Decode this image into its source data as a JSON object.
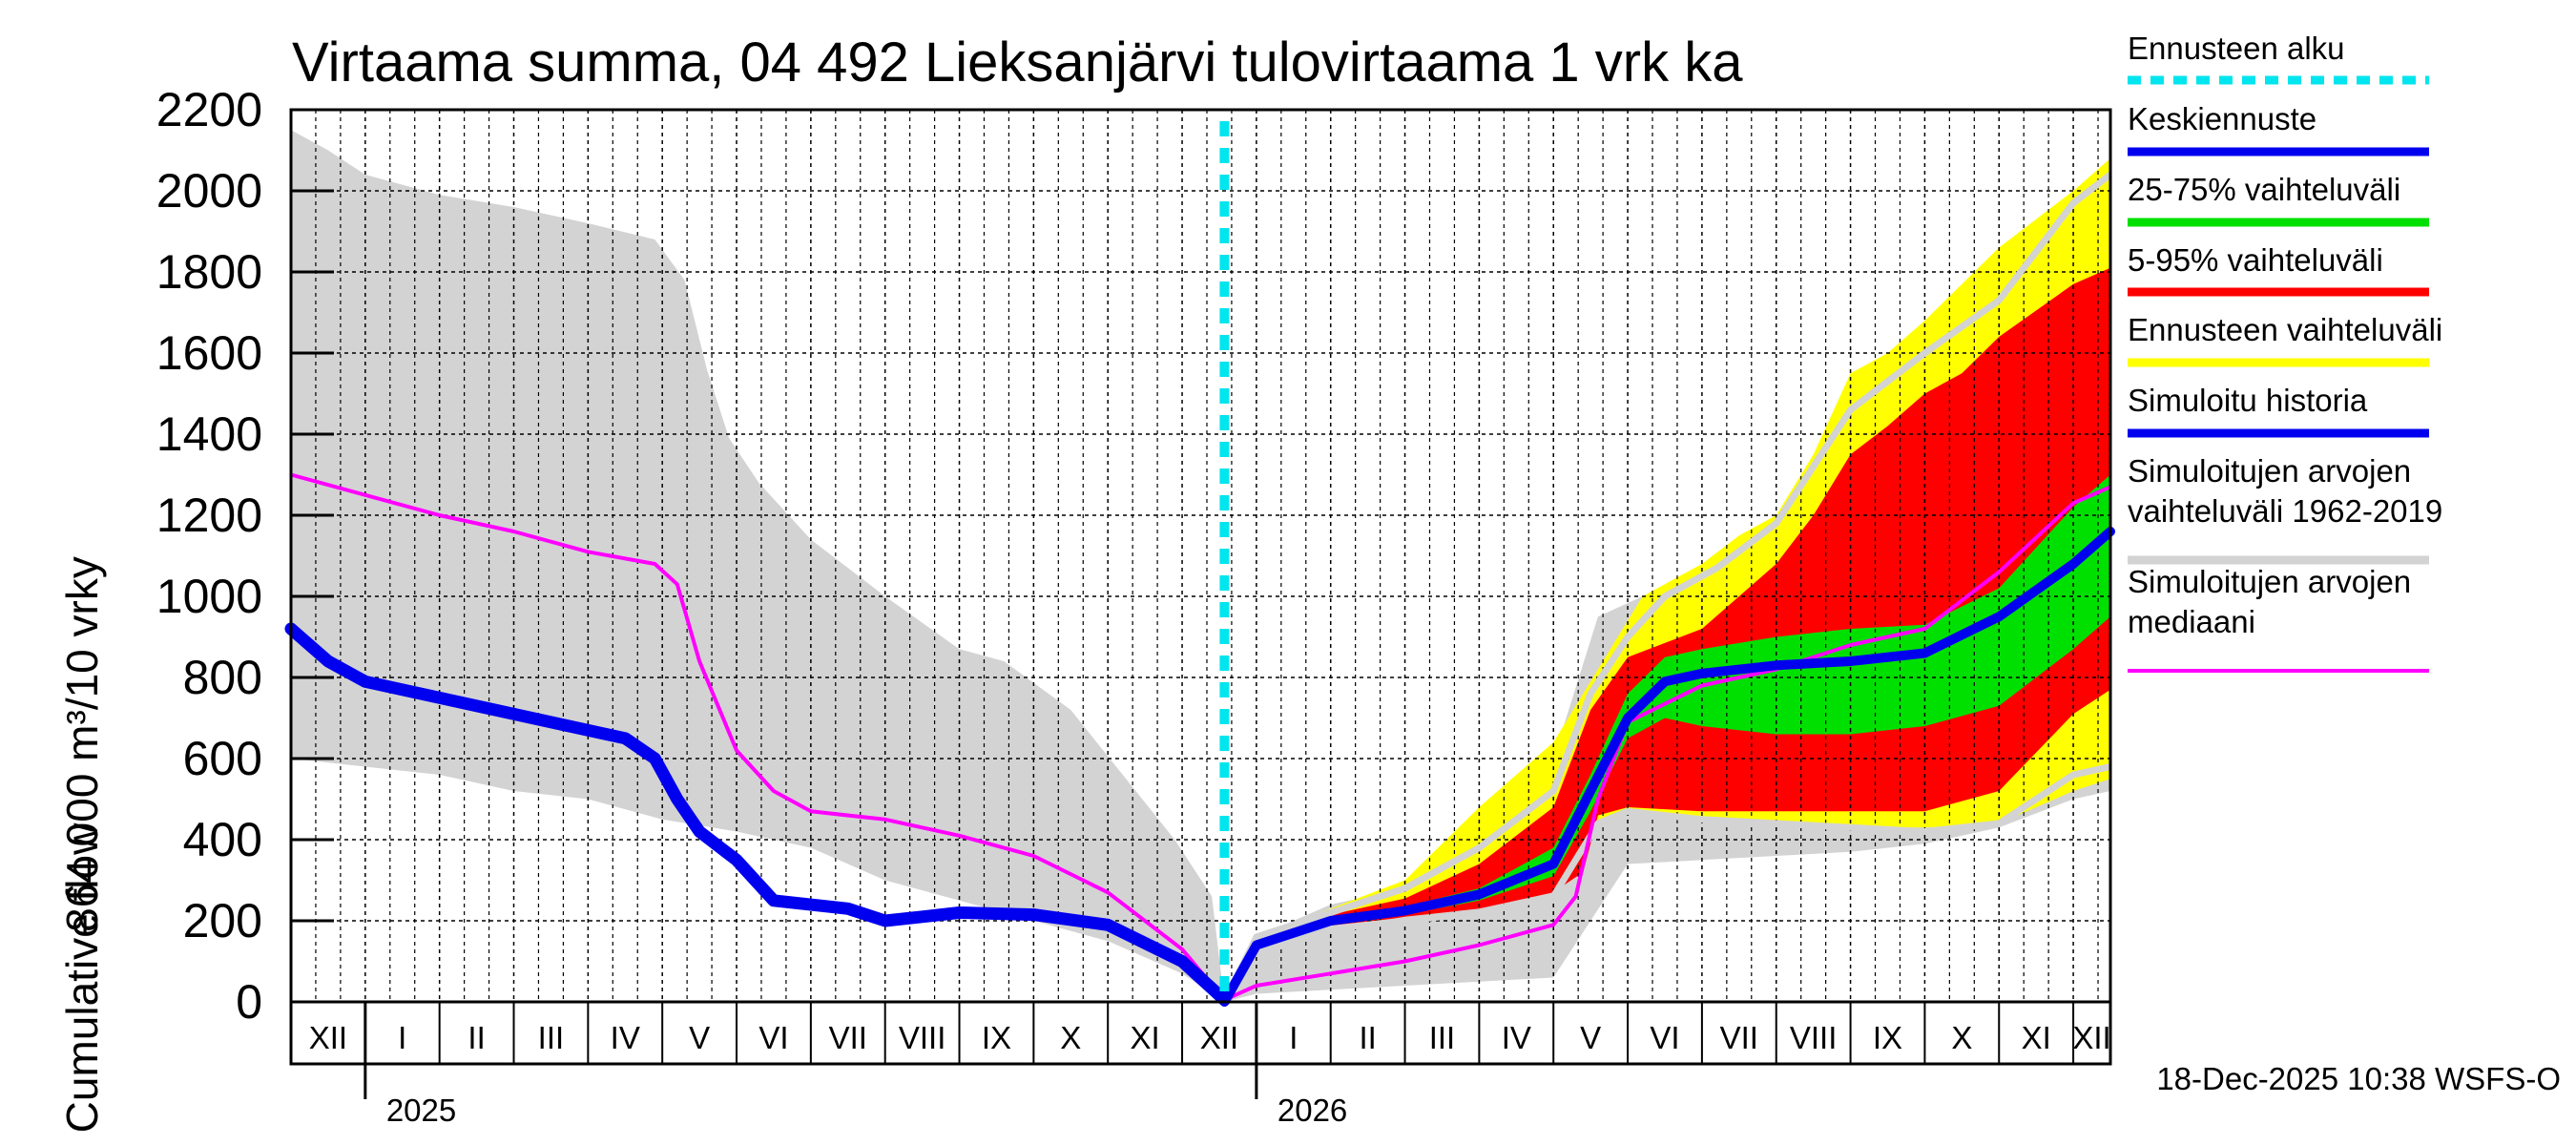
{
  "chart_data": {
    "type": "area",
    "title": "Virtaama summa, 04 492 Lieksanjärvi tulovirtaama 1 vrk ka",
    "ylabel_upper": "864 000 m³/10 vrky",
    "ylabel_lower": "Cumulative flow",
    "ylim": [
      0,
      2200
    ],
    "yticks": [
      0,
      200,
      400,
      600,
      800,
      1000,
      1200,
      1400,
      1600,
      1800,
      2000,
      2200
    ],
    "x_unit": "months from start of December 2024",
    "xlim": [
      0,
      24.5
    ],
    "forecast_start": 12.57,
    "months": [
      {
        "label": "XII",
        "x": 0.5
      },
      {
        "label": "I",
        "x": 1.5
      },
      {
        "label": "II",
        "x": 2.5
      },
      {
        "label": "III",
        "x": 3.5
      },
      {
        "label": "IV",
        "x": 4.5
      },
      {
        "label": "V",
        "x": 5.5
      },
      {
        "label": "VI",
        "x": 6.5
      },
      {
        "label": "VII",
        "x": 7.5
      },
      {
        "label": "VIII",
        "x": 8.5
      },
      {
        "label": "IX",
        "x": 9.5
      },
      {
        "label": "X",
        "x": 10.5
      },
      {
        "label": "XI",
        "x": 11.5
      },
      {
        "label": "XII",
        "x": 12.5
      },
      {
        "label": "I",
        "x": 13.5
      },
      {
        "label": "II",
        "x": 14.5
      },
      {
        "label": "III",
        "x": 15.5
      },
      {
        "label": "IV",
        "x": 16.5
      },
      {
        "label": "V",
        "x": 17.5
      },
      {
        "label": "VI",
        "x": 18.5
      },
      {
        "label": "VII",
        "x": 19.5
      },
      {
        "label": "VIII",
        "x": 20.5
      },
      {
        "label": "IX",
        "x": 21.5
      },
      {
        "label": "X",
        "x": 22.5
      },
      {
        "label": "XI",
        "x": 23.5
      },
      {
        "label": "XII",
        "x": 24.25
      }
    ],
    "years": [
      {
        "label": "2025",
        "x": 1
      },
      {
        "label": "2026",
        "x": 13
      }
    ],
    "sim_range_1962_2019": {
      "upper": [
        [
          0,
          2150
        ],
        [
          0.5,
          2100
        ],
        [
          1,
          2040
        ],
        [
          2,
          1990
        ],
        [
          3,
          1960
        ],
        [
          4,
          1920
        ],
        [
          4.9,
          1880
        ],
        [
          5.3,
          1780
        ],
        [
          5.6,
          1560
        ],
        [
          5.9,
          1390
        ],
        [
          6.3,
          1280
        ],
        [
          7,
          1140
        ],
        [
          8,
          1000
        ],
        [
          9,
          870
        ],
        [
          9.6,
          840
        ],
        [
          10.5,
          720
        ],
        [
          11.2,
          560
        ],
        [
          11.9,
          400
        ],
        [
          12.4,
          260
        ],
        [
          12.57,
          0
        ],
        [
          13,
          160
        ],
        [
          14,
          240
        ],
        [
          15,
          280
        ],
        [
          16,
          400
        ],
        [
          17,
          600
        ],
        [
          17.6,
          950
        ],
        [
          18.2,
          1000
        ],
        [
          19,
          1050
        ],
        [
          19.8,
          1110
        ],
        [
          20.5,
          1250
        ],
        [
          21,
          1450
        ],
        [
          22,
          1620
        ],
        [
          23,
          1820
        ],
        [
          24,
          1990
        ],
        [
          24.5,
          2080
        ]
      ],
      "lower": [
        [
          0,
          600
        ],
        [
          1,
          580
        ],
        [
          2,
          560
        ],
        [
          3,
          520
        ],
        [
          4,
          500
        ],
        [
          5,
          450
        ],
        [
          6,
          420
        ],
        [
          7,
          380
        ],
        [
          8,
          300
        ],
        [
          9,
          250
        ],
        [
          10,
          200
        ],
        [
          11,
          150
        ],
        [
          12,
          70
        ],
        [
          12.57,
          0
        ],
        [
          13,
          20
        ],
        [
          14,
          30
        ],
        [
          15,
          40
        ],
        [
          16,
          50
        ],
        [
          17,
          60
        ],
        [
          17.5,
          200
        ],
        [
          18,
          340
        ],
        [
          19,
          350
        ],
        [
          20,
          360
        ],
        [
          21,
          370
        ],
        [
          22,
          390
        ],
        [
          23,
          430
        ],
        [
          24,
          500
        ],
        [
          24.5,
          520
        ]
      ]
    },
    "forecast_range": {
      "upper": [
        [
          12.57,
          0
        ],
        [
          13,
          160
        ],
        [
          14,
          230
        ],
        [
          15,
          300
        ],
        [
          16,
          480
        ],
        [
          17,
          640
        ],
        [
          17.6,
          820
        ],
        [
          18.2,
          1000
        ],
        [
          19,
          1080
        ],
        [
          19.5,
          1150
        ],
        [
          20,
          1200
        ],
        [
          20.5,
          1350
        ],
        [
          21,
          1550
        ],
        [
          21.5,
          1600
        ],
        [
          22,
          1680
        ],
        [
          23,
          1860
        ],
        [
          24,
          2000
        ],
        [
          24.5,
          2080
        ]
      ],
      "lower": [
        [
          12.57,
          0
        ],
        [
          13,
          140
        ],
        [
          14,
          190
        ],
        [
          15,
          220
        ],
        [
          16,
          240
        ],
        [
          17,
          300
        ],
        [
          17.5,
          440
        ],
        [
          18,
          470
        ],
        [
          19,
          450
        ],
        [
          20,
          440
        ],
        [
          21,
          430
        ],
        [
          22,
          430
        ],
        [
          23,
          440
        ],
        [
          24,
          520
        ],
        [
          24.5,
          550
        ]
      ]
    },
    "range_5_95": {
      "upper": [
        [
          12.57,
          0
        ],
        [
          13,
          150
        ],
        [
          14,
          215
        ],
        [
          15,
          255
        ],
        [
          16,
          340
        ],
        [
          17,
          480
        ],
        [
          17.5,
          720
        ],
        [
          18,
          850
        ],
        [
          19,
          920
        ],
        [
          19.5,
          1000
        ],
        [
          20,
          1080
        ],
        [
          20.5,
          1200
        ],
        [
          21,
          1350
        ],
        [
          21.5,
          1420
        ],
        [
          22,
          1500
        ],
        [
          22.5,
          1550
        ],
        [
          23,
          1640
        ],
        [
          24,
          1770
        ],
        [
          24.5,
          1810
        ]
      ],
      "lower": [
        [
          12.57,
          0
        ],
        [
          13,
          140
        ],
        [
          14,
          180
        ],
        [
          15,
          210
        ],
        [
          16,
          230
        ],
        [
          17,
          270
        ],
        [
          17.4,
          320
        ],
        [
          17.6,
          460
        ],
        [
          18,
          480
        ],
        [
          19,
          470
        ],
        [
          20,
          470
        ],
        [
          21,
          470
        ],
        [
          22,
          470
        ],
        [
          23,
          520
        ],
        [
          24,
          710
        ],
        [
          24.5,
          770
        ]
      ]
    },
    "range_25_75": {
      "upper": [
        [
          12.57,
          0
        ],
        [
          13,
          145
        ],
        [
          14,
          205
        ],
        [
          15,
          235
        ],
        [
          16,
          280
        ],
        [
          17,
          380
        ],
        [
          17.5,
          560
        ],
        [
          18,
          760
        ],
        [
          18.5,
          850
        ],
        [
          19,
          870
        ],
        [
          20,
          900
        ],
        [
          21,
          920
        ],
        [
          22,
          930
        ],
        [
          23,
          1020
        ],
        [
          24,
          1220
        ],
        [
          24.5,
          1300
        ]
      ],
      "lower": [
        [
          12.57,
          0
        ],
        [
          13,
          140
        ],
        [
          14,
          190
        ],
        [
          15,
          215
        ],
        [
          16,
          250
        ],
        [
          17,
          310
        ],
        [
          17.5,
          470
        ],
        [
          18,
          650
        ],
        [
          18.5,
          700
        ],
        [
          19,
          680
        ],
        [
          20,
          660
        ],
        [
          21,
          660
        ],
        [
          22,
          680
        ],
        [
          23,
          730
        ],
        [
          24,
          870
        ],
        [
          24.5,
          950
        ]
      ]
    },
    "mean_forecast": [
      [
        12.57,
        0
      ],
      [
        13,
        140
      ],
      [
        14,
        200
      ],
      [
        15,
        225
      ],
      [
        16,
        265
      ],
      [
        17,
        340
      ],
      [
        17.5,
        520
      ],
      [
        18,
        700
      ],
      [
        18.5,
        790
      ],
      [
        19,
        810
      ],
      [
        20,
        830
      ],
      [
        21,
        840
      ],
      [
        22,
        860
      ],
      [
        23,
        950
      ],
      [
        24,
        1080
      ],
      [
        24.5,
        1160
      ]
    ],
    "simulated_history": [
      [
        0,
        920
      ],
      [
        0.5,
        840
      ],
      [
        1,
        790
      ],
      [
        2,
        750
      ],
      [
        3,
        710
      ],
      [
        4,
        670
      ],
      [
        4.5,
        650
      ],
      [
        4.9,
        600
      ],
      [
        5.2,
        500
      ],
      [
        5.5,
        420
      ],
      [
        6,
        350
      ],
      [
        6.5,
        250
      ],
      [
        7.5,
        230
      ],
      [
        8,
        200
      ],
      [
        8.5,
        210
      ],
      [
        9,
        220
      ],
      [
        10,
        215
      ],
      [
        11,
        190
      ],
      [
        12,
        100
      ],
      [
        12.57,
        5
      ]
    ],
    "median": [
      [
        0,
        1300
      ],
      [
        1,
        1250
      ],
      [
        2,
        1200
      ],
      [
        3,
        1160
      ],
      [
        4,
        1110
      ],
      [
        4.9,
        1080
      ],
      [
        5.2,
        1030
      ],
      [
        5.5,
        840
      ],
      [
        6,
        620
      ],
      [
        6.5,
        520
      ],
      [
        7,
        470
      ],
      [
        8,
        450
      ],
      [
        9,
        410
      ],
      [
        10,
        360
      ],
      [
        11,
        270
      ],
      [
        12,
        130
      ],
      [
        12.57,
        5
      ],
      [
        13,
        40
      ],
      [
        14,
        70
      ],
      [
        15,
        100
      ],
      [
        16,
        140
      ],
      [
        17,
        190
      ],
      [
        17.3,
        260
      ],
      [
        17.6,
        500
      ],
      [
        18,
        690
      ],
      [
        19,
        780
      ],
      [
        20,
        820
      ],
      [
        21,
        880
      ],
      [
        22,
        920
      ],
      [
        23,
        1060
      ],
      [
        24,
        1230
      ],
      [
        24.5,
        1270
      ]
    ],
    "grey_high_mid": [
      [
        12.57,
        0
      ],
      [
        13,
        160
      ],
      [
        14,
        220
      ],
      [
        15,
        280
      ],
      [
        16,
        380
      ],
      [
        17,
        520
      ],
      [
        17.5,
        760
      ],
      [
        18,
        900
      ],
      [
        18.5,
        1000
      ],
      [
        19.2,
        1070
      ],
      [
        20,
        1180
      ],
      [
        21,
        1460
      ],
      [
        22,
        1600
      ],
      [
        23,
        1730
      ],
      [
        24,
        1970
      ],
      [
        24.5,
        2040
      ]
    ],
    "grey_low_mid": [
      [
        12.57,
        0
      ],
      [
        13,
        130
      ],
      [
        14,
        180
      ],
      [
        15,
        200
      ],
      [
        16,
        220
      ],
      [
        17,
        260
      ],
      [
        17.6,
        440
      ],
      [
        18,
        470
      ],
      [
        19,
        450
      ],
      [
        20,
        440
      ],
      [
        21,
        430
      ],
      [
        22,
        420
      ],
      [
        23,
        440
      ],
      [
        24,
        560
      ],
      [
        24.5,
        580
      ]
    ],
    "colors": {
      "sim_range": "#d3d3d3",
      "forecast_range": "#ffff00",
      "range_5_95": "#ff0000",
      "range_25_75": "#00e000",
      "mean_forecast": "#0000ee",
      "simulated_history": "#0000ee",
      "median": "#ff00ff",
      "forecast_start": "#00e5ee",
      "grey_line": "#d3d3d3"
    }
  },
  "legend": {
    "items": [
      {
        "label": "Ennusteen alku",
        "color": "#00e5ee",
        "style": "dotted"
      },
      {
        "label": "Keskiennuste",
        "color": "#0000ee",
        "style": "line"
      },
      {
        "label": "25-75% vaihteluväli",
        "color": "#00e000",
        "style": "line"
      },
      {
        "label": "5-95% vaihteluväli",
        "color": "#ff0000",
        "style": "line"
      },
      {
        "label": "Ennusteen vaihteluväli",
        "color": "#ffff00",
        "style": "line"
      },
      {
        "label": "Simuloitu historia",
        "color": "#0000ee",
        "style": "line"
      },
      {
        "label": "Simuloitujen arvojen\nvaihteluväli 1962-2019",
        "color": "#d3d3d3",
        "style": "line"
      },
      {
        "label": "Simuloitujen arvojen\nmediaani",
        "color": "#ff00ff",
        "style": "thin"
      }
    ]
  },
  "timestamp": "18-Dec-2025 10:38 WSFS-O"
}
